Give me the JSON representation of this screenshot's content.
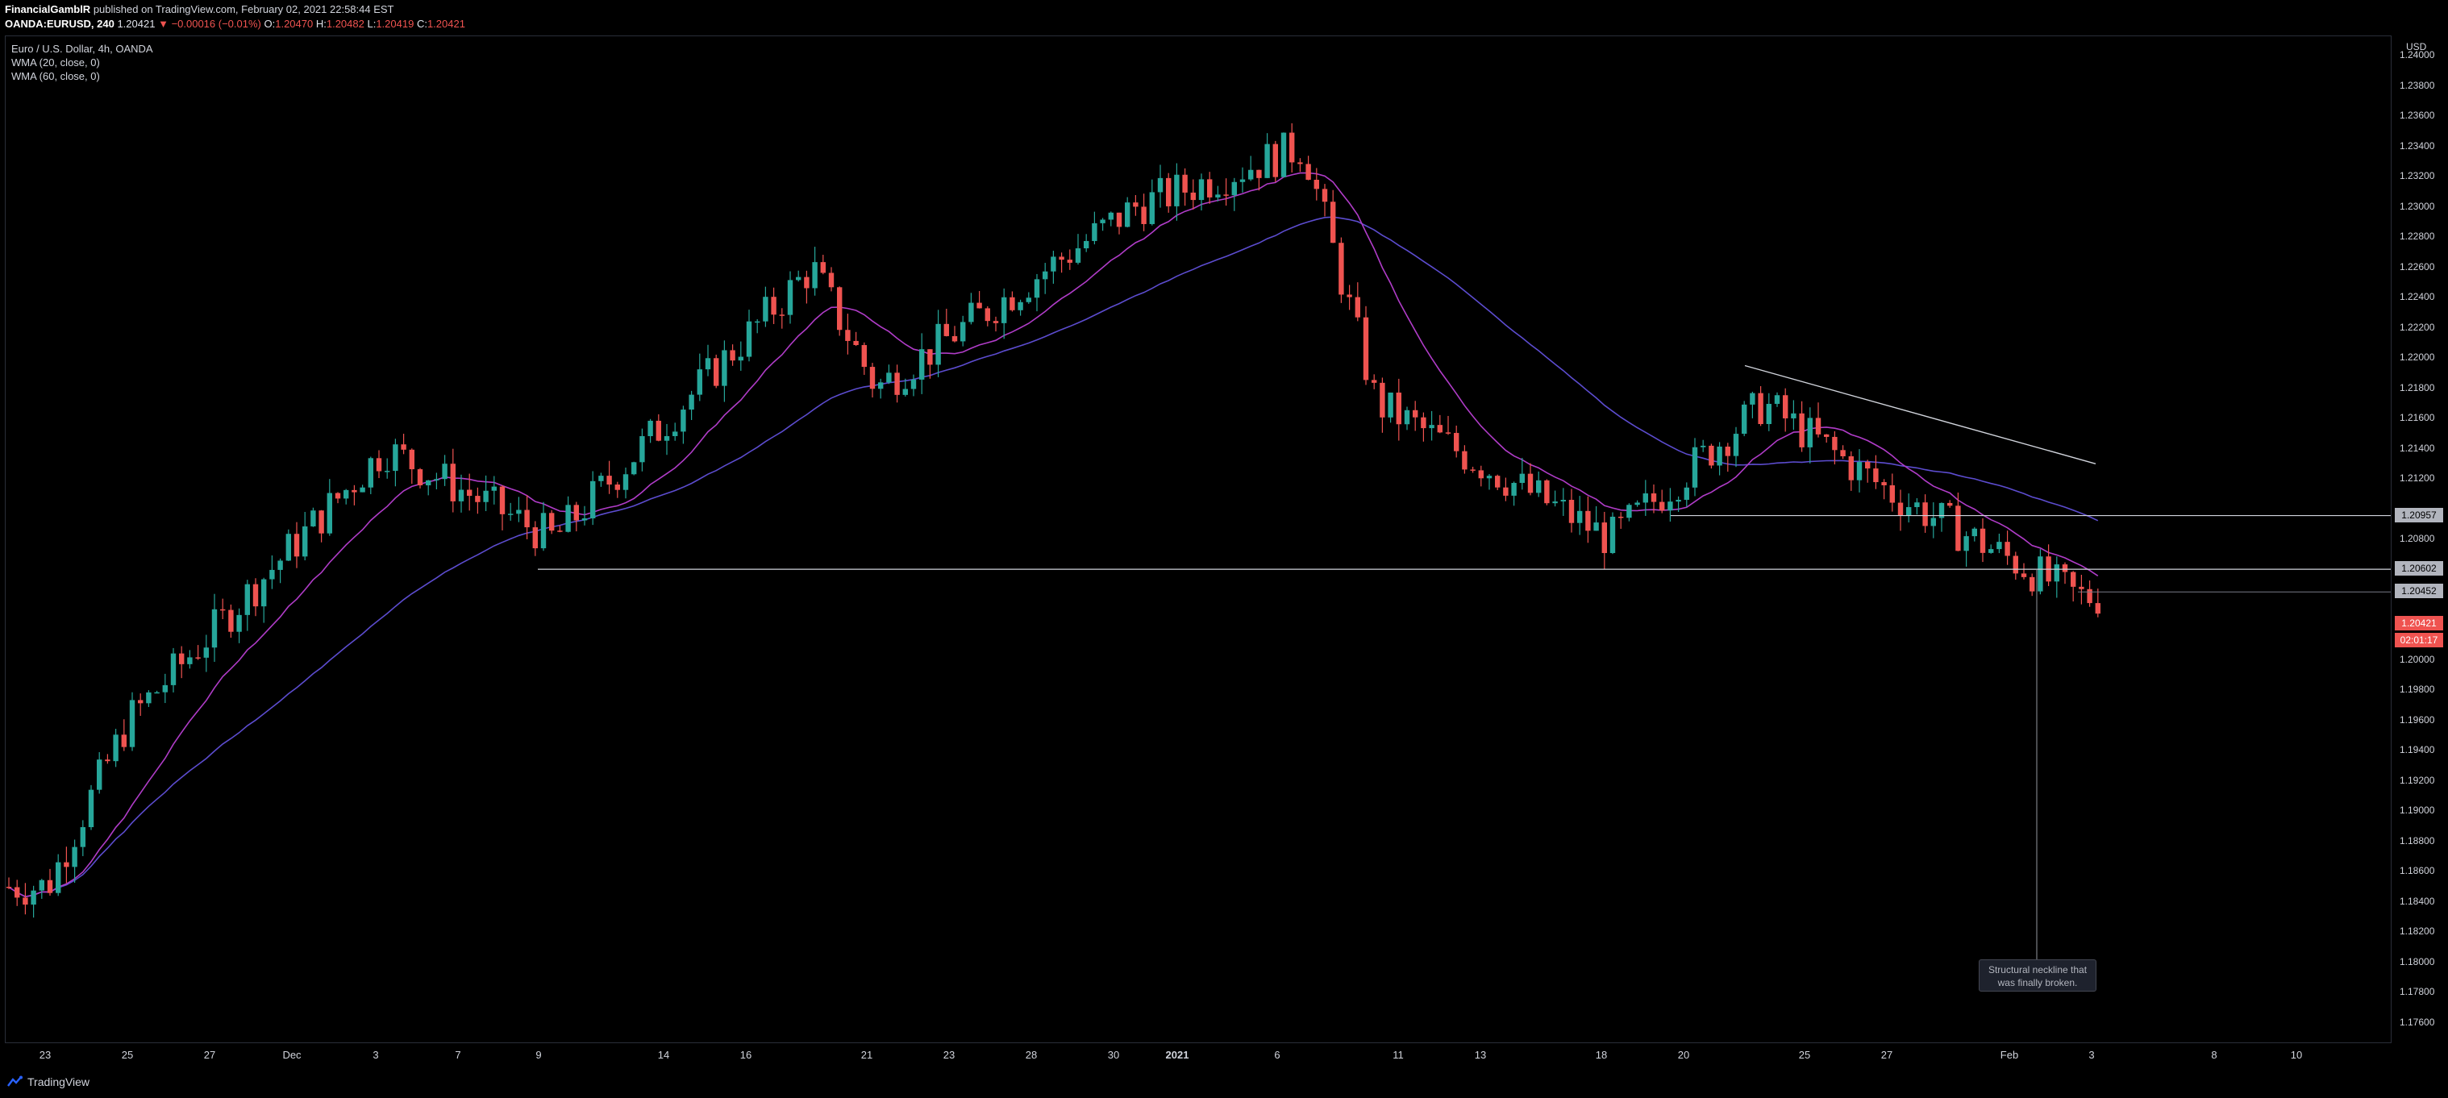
{
  "header": {
    "author": "FinancialGamblR",
    "published_text": "published on TradingView.com, February 02, 2021 22:58:44 EST",
    "symbol": "OANDA:EURUSD, 240",
    "last_price": "1.20421",
    "change_arrow": "▼",
    "change": "−0.00016 (−0.01%)",
    "o_label": "O:",
    "o_value": "1.20470",
    "h_label": "H:",
    "h_value": "1.20482",
    "l_label": "L:",
    "l_value": "1.20419",
    "c_label": "C:",
    "c_value": "1.20421"
  },
  "legend": {
    "title": "Euro / U.S. Dollar, 4h, OANDA",
    "ma1": "WMA (20, close, 0)",
    "ma2": "WMA (60, close, 0)"
  },
  "price_scale": {
    "currency": "USD",
    "ticks": [
      "1.24000",
      "1.23800",
      "1.23600",
      "1.23400",
      "1.23200",
      "1.23000",
      "1.22800",
      "1.22600",
      "1.22400",
      "1.22200",
      "1.22000",
      "1.21800",
      "1.21600",
      "1.21400",
      "1.21200",
      "1.20800",
      "1.20000",
      "1.19800",
      "1.19600",
      "1.19400",
      "1.19200",
      "1.19000",
      "1.18800",
      "1.18600",
      "1.18400",
      "1.18200",
      "1.18000",
      "1.17800",
      "1.17600"
    ],
    "tags": [
      {
        "text": "1.20957",
        "price": 1.20957,
        "color": "#b2b5be",
        "fg": "#000000"
      },
      {
        "text": "1.20602",
        "price": 1.20602,
        "color": "#b2b5be",
        "fg": "#000000"
      },
      {
        "text": "1.20452",
        "price": 1.20452,
        "color": "#b2b5be",
        "fg": "#000000"
      },
      {
        "text": "1.20421",
        "price": 1.2024,
        "color": "#ef5350",
        "fg": "#ffffff"
      },
      {
        "text": "02:01:17",
        "price": 1.2013,
        "color": "#ef5350",
        "fg": "#ffffff"
      }
    ]
  },
  "time_scale": {
    "labels": [
      "23",
      "25",
      "27",
      "Dec",
      "3",
      "7",
      "9",
      "14",
      "16",
      "21",
      "23",
      "28",
      "30",
      "2021",
      "6",
      "11",
      "13",
      "18",
      "20",
      "25",
      "27",
      "Feb",
      "3",
      "8",
      "10"
    ]
  },
  "annotation": {
    "line1": "Structural neckline that",
    "line2": "was finally broken."
  },
  "footer": {
    "brand": "TradingView"
  },
  "colors": {
    "up": "#26a69a",
    "down": "#ef5350",
    "wma20": "#b03cc8",
    "wma60": "#5c4ccf",
    "lines": "#d1d4dc"
  },
  "chart_data": {
    "type": "candlestick",
    "timeframe": "4h",
    "ylim": [
      1.1747,
      1.2413
    ],
    "key_closes": [
      {
        "date": "Nov 23",
        "close": 1.185
      },
      {
        "date": "Nov 27",
        "close": 1.196
      },
      {
        "date": "Dec 4",
        "close": 1.214
      },
      {
        "date": "Dec 9",
        "close": 1.208
      },
      {
        "date": "Dec 17",
        "close": 1.226
      },
      {
        "date": "Dec 22",
        "close": 1.218
      },
      {
        "date": "Dec 31",
        "close": 1.23
      },
      {
        "date": "Jan 6",
        "close": 1.234
      },
      {
        "date": "Jan 11",
        "close": 1.217
      },
      {
        "date": "Jan 18",
        "close": 1.208
      },
      {
        "date": "Jan 22",
        "close": 1.217
      },
      {
        "date": "Jan 27",
        "close": 1.211
      },
      {
        "date": "Feb 2",
        "close": 1.2042
      }
    ],
    "horizontal_levels": [
      1.20957,
      1.20602,
      1.20452
    ],
    "trendline": {
      "from": {
        "date": "Jan 21",
        "price": 1.2195
      },
      "to": {
        "date": "Feb 3",
        "price": 1.213
      }
    }
  }
}
